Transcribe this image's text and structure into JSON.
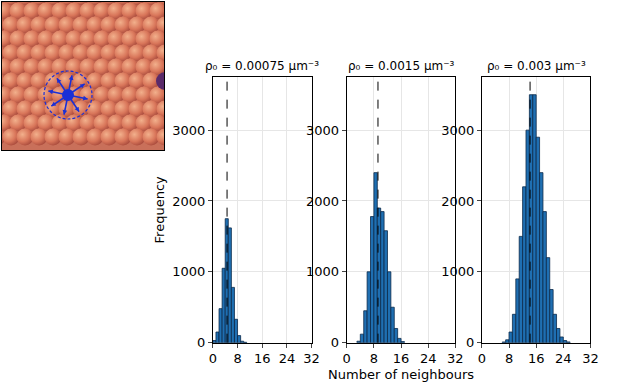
{
  "chart_data": [
    {
      "type": "histogram",
      "title": "ρ₀ = 0.00075 μm⁻³",
      "bins": [
        0,
        1,
        2,
        3,
        4,
        5,
        6,
        7,
        8,
        9,
        10,
        11
      ],
      "values": [
        30,
        150,
        480,
        1050,
        1750,
        1620,
        780,
        330,
        100,
        20,
        5
      ],
      "dashed_line_x": 4.6,
      "ylabel": "Frequency",
      "color": "#1f6fb2",
      "xlim": [
        0,
        32
      ],
      "xticks": [
        0,
        8,
        16,
        24,
        32
      ],
      "ylim": [
        0,
        3750
      ],
      "yticks": [
        0,
        1000,
        2000,
        3000
      ],
      "grid": true
    },
    {
      "type": "histogram",
      "title": "ρ₀ = 0.0015 μm⁻³",
      "bins": [
        3,
        4,
        5,
        6,
        7,
        8,
        9,
        10,
        11,
        12,
        13,
        14,
        15,
        16,
        17
      ],
      "values": [
        20,
        120,
        450,
        1000,
        1780,
        2400,
        1900,
        1850,
        1580,
        1000,
        500,
        200,
        60,
        15
      ],
      "dashed_line_x": 9.2,
      "xlabel": "Number of neighbours",
      "color": "#1f6fb2",
      "xlim": [
        0,
        32
      ],
      "xticks": [
        0,
        8,
        16,
        24,
        32
      ],
      "ylim": [
        0,
        3750
      ],
      "yticks": [
        0,
        1000,
        2000,
        3000
      ],
      "grid": true
    },
    {
      "type": "histogram",
      "title": "ρ₀ = 0.003 μm⁻³",
      "bins": [
        6,
        7,
        8,
        9,
        10,
        11,
        12,
        13,
        14,
        15,
        16,
        17,
        18,
        19,
        20,
        21,
        22,
        23,
        24,
        25,
        26
      ],
      "values": [
        10,
        40,
        150,
        400,
        900,
        1500,
        2200,
        3000,
        3500,
        3500,
        2900,
        2400,
        1850,
        1200,
        750,
        400,
        200,
        80,
        30,
        10
      ],
      "dashed_line_x": 14.2,
      "color": "#1f6fb2",
      "xlim": [
        0,
        32
      ],
      "xticks": [
        0,
        8,
        16,
        24,
        32
      ],
      "ylim": [
        0,
        3750
      ],
      "yticks": [
        0,
        1000,
        2000,
        3000
      ],
      "grid": true
    }
  ]
}
